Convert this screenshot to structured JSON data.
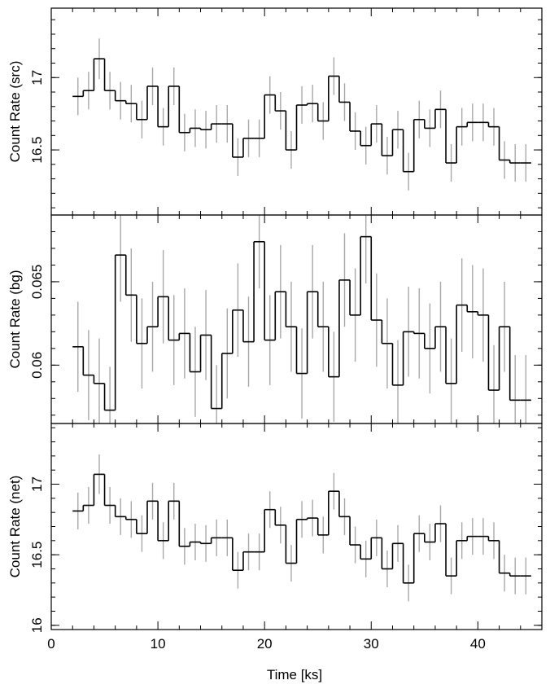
{
  "chart_data": {
    "type": "line",
    "style": "step-histogram with error bars",
    "xlabel": "Time [ks]",
    "xlim": [
      0,
      46
    ],
    "x_ticks": [
      "0",
      "10",
      "20",
      "30",
      "40"
    ],
    "x_tick_values": [
      0,
      10,
      20,
      30,
      40
    ],
    "bin_width_ks": 1.0,
    "x": [
      2.5,
      3.5,
      4.5,
      5.5,
      6.5,
      7.5,
      8.5,
      9.5,
      10.5,
      11.5,
      12.5,
      13.5,
      14.5,
      15.5,
      16.5,
      17.5,
      18.5,
      19.5,
      20.5,
      21.5,
      22.5,
      23.5,
      24.5,
      25.5,
      26.5,
      27.5,
      28.5,
      29.5,
      30.5,
      31.5,
      32.5,
      33.5,
      34.5,
      35.5,
      36.5,
      37.5,
      38.5,
      39.5,
      40.5,
      41.5,
      42.5,
      43.5,
      44.5
    ],
    "panels": [
      {
        "ylabel": "Count Rate (src)",
        "ylim": [
          16.05,
          17.48
        ],
        "y_ticks": [
          "16.5",
          "17"
        ],
        "y_tick_values": [
          16.5,
          17.0
        ],
        "minor_step": 0.1,
        "values": [
          16.87,
          16.91,
          17.13,
          16.91,
          16.84,
          16.82,
          16.71,
          16.94,
          16.66,
          16.94,
          16.62,
          16.65,
          16.64,
          16.68,
          16.68,
          16.45,
          16.58,
          16.58,
          16.88,
          16.77,
          16.5,
          16.81,
          16.82,
          16.7,
          17.01,
          16.83,
          16.63,
          16.53,
          16.68,
          16.46,
          16.64,
          16.35,
          16.71,
          16.65,
          16.78,
          16.41,
          16.66,
          16.69,
          16.69,
          16.66,
          16.43,
          16.41,
          16.41
        ],
        "err": [
          0.13,
          0.13,
          0.14,
          0.13,
          0.13,
          0.13,
          0.13,
          0.13,
          0.13,
          0.13,
          0.13,
          0.13,
          0.13,
          0.13,
          0.13,
          0.13,
          0.13,
          0.13,
          0.13,
          0.13,
          0.13,
          0.13,
          0.13,
          0.13,
          0.13,
          0.13,
          0.13,
          0.13,
          0.13,
          0.13,
          0.13,
          0.13,
          0.13,
          0.13,
          0.13,
          0.13,
          0.13,
          0.13,
          0.13,
          0.13,
          0.13,
          0.13,
          0.13
        ]
      },
      {
        "ylabel": "Count Rate (bg)",
        "ylim": [
          0.0565,
          0.069
        ],
        "y_ticks": [
          "0.06",
          "0.065"
        ],
        "y_tick_values": [
          0.06,
          0.065
        ],
        "minor_step": 0.001,
        "values": [
          0.0611,
          0.0594,
          0.0589,
          0.0573,
          0.0666,
          0.0642,
          0.0613,
          0.0623,
          0.0641,
          0.0615,
          0.0619,
          0.0596,
          0.0618,
          0.0574,
          0.0607,
          0.0633,
          0.0614,
          0.0674,
          0.0615,
          0.0644,
          0.0623,
          0.0595,
          0.0644,
          0.0623,
          0.0593,
          0.0651,
          0.063,
          0.0677,
          0.0627,
          0.0613,
          0.0588,
          0.062,
          0.0619,
          0.061,
          0.0623,
          0.0589,
          0.0636,
          0.0632,
          0.063,
          0.0585,
          0.0623,
          0.0579,
          0.0579
        ],
        "err": [
          0.0027,
          0.0027,
          0.0027,
          0.0026,
          0.0028,
          0.0028,
          0.0027,
          0.0027,
          0.0028,
          0.0027,
          0.0027,
          0.0027,
          0.0027,
          0.0026,
          0.0027,
          0.0028,
          0.0027,
          0.0028,
          0.0027,
          0.0028,
          0.0027,
          0.0027,
          0.0028,
          0.0027,
          0.0027,
          0.0028,
          0.0028,
          0.0028,
          0.0028,
          0.0027,
          0.0027,
          0.0027,
          0.0027,
          0.0027,
          0.0027,
          0.0027,
          0.0028,
          0.0028,
          0.0028,
          0.0027,
          0.0027,
          0.0027,
          0.0027
        ]
      },
      {
        "ylabel": "Count Rate (net)",
        "ylim": [
          15.97,
          17.43
        ],
        "y_ticks": [
          "16",
          "16.5",
          "17"
        ],
        "y_tick_values": [
          16.0,
          16.5,
          17.0
        ],
        "minor_step": 0.1,
        "values": [
          16.81,
          16.85,
          17.07,
          16.85,
          16.77,
          16.75,
          16.65,
          16.88,
          16.6,
          16.88,
          16.56,
          16.59,
          16.58,
          16.62,
          16.62,
          16.39,
          16.52,
          16.52,
          16.82,
          16.71,
          16.44,
          16.75,
          16.76,
          16.64,
          16.95,
          16.77,
          16.57,
          16.47,
          16.62,
          16.4,
          16.58,
          16.3,
          16.65,
          16.59,
          16.72,
          16.35,
          16.6,
          16.63,
          16.63,
          16.6,
          16.37,
          16.35,
          16.35
        ],
        "err": [
          0.13,
          0.13,
          0.14,
          0.13,
          0.13,
          0.13,
          0.13,
          0.13,
          0.13,
          0.13,
          0.13,
          0.13,
          0.13,
          0.13,
          0.13,
          0.13,
          0.13,
          0.13,
          0.13,
          0.13,
          0.13,
          0.13,
          0.13,
          0.13,
          0.13,
          0.13,
          0.13,
          0.13,
          0.13,
          0.13,
          0.13,
          0.13,
          0.13,
          0.13,
          0.13,
          0.13,
          0.13,
          0.13,
          0.13,
          0.13,
          0.13,
          0.13,
          0.13
        ]
      }
    ],
    "colors": {
      "line": "#000000",
      "error_bar": "#a8a8a8",
      "frame": "#000000"
    }
  }
}
